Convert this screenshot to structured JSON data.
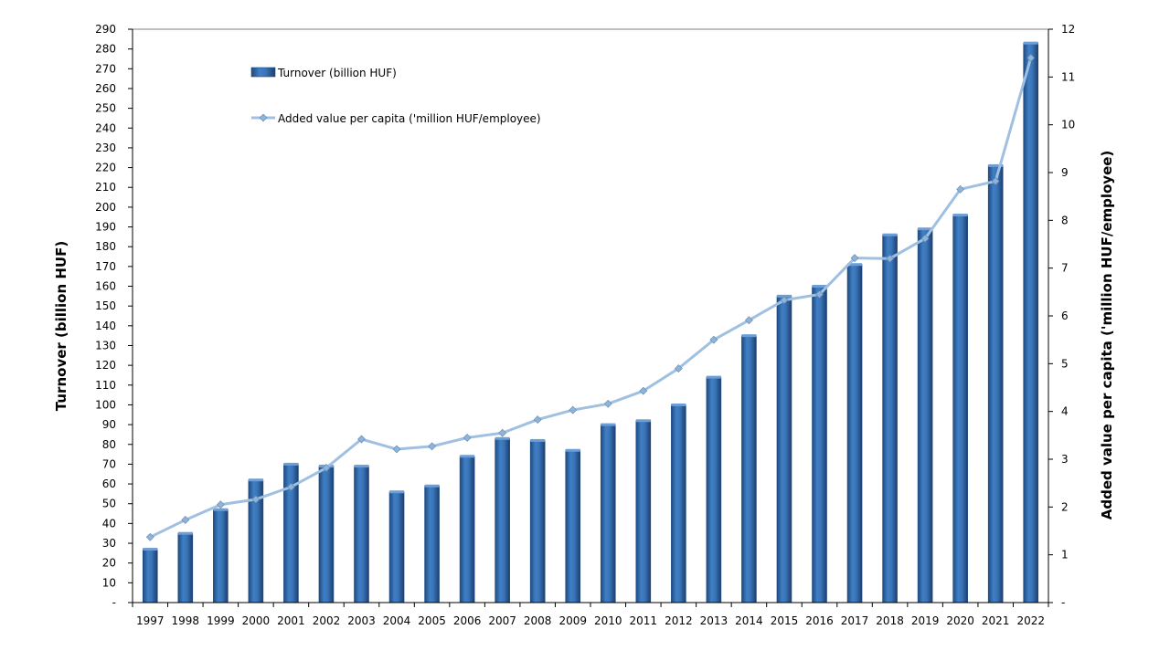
{
  "chart_data": {
    "type": "bar",
    "categories": [
      "1997",
      "1998",
      "1999",
      "2000",
      "2001",
      "2002",
      "2003",
      "2004",
      "2005",
      "2006",
      "2007",
      "2008",
      "2009",
      "2010",
      "2011",
      "2012",
      "2013",
      "2014",
      "2015",
      "2016",
      "2017",
      "2018",
      "2019",
      "2020",
      "2021",
      "2022"
    ],
    "series": [
      {
        "name": "Turnover (billion HUF)",
        "type": "bar",
        "axis": "left",
        "values": [
          27,
          35,
          47,
          62,
          70,
          69,
          69,
          56,
          59,
          74,
          83,
          82,
          77,
          90,
          92,
          100,
          114,
          135,
          155,
          160,
          171,
          186,
          189,
          196,
          221,
          283
        ]
      },
      {
        "name": "Added value per capita ('million HUF/employee)",
        "type": "line",
        "axis": "right",
        "values": [
          1.37,
          1.73,
          2.05,
          2.16,
          2.42,
          2.82,
          3.42,
          3.21,
          3.27,
          3.45,
          3.55,
          3.83,
          4.03,
          4.16,
          4.43,
          4.9,
          5.5,
          5.91,
          6.33,
          6.45,
          7.21,
          7.2,
          7.62,
          8.65,
          8.82,
          11.4
        ]
      }
    ],
    "ylabel": "Turnover  (billion HUF)",
    "ylabel_right": "Added value per capita ('million HUF/employee)",
    "ylim": [
      0,
      290
    ],
    "ylim_right": [
      0,
      12
    ],
    "yticks": [
      "-",
      "10",
      "20",
      "30",
      "40",
      "50",
      "60",
      "70",
      "80",
      "90",
      "100",
      "110",
      "120",
      "130",
      "140",
      "150",
      "160",
      "170",
      "180",
      "190",
      "200",
      "210",
      "220",
      "230",
      "240",
      "250",
      "260",
      "270",
      "280",
      "290"
    ],
    "yticks_right": [
      "-",
      "1",
      "2",
      "3",
      "4",
      "5",
      "6",
      "7",
      "8",
      "9",
      "10",
      "11",
      "12"
    ],
    "legend_position": "top-left",
    "grid": false,
    "colors": {
      "bar": "#3a74b8",
      "bar_dark": "#1f4a80",
      "line": "#9fc0e0",
      "marker": "#8eb4da"
    }
  }
}
